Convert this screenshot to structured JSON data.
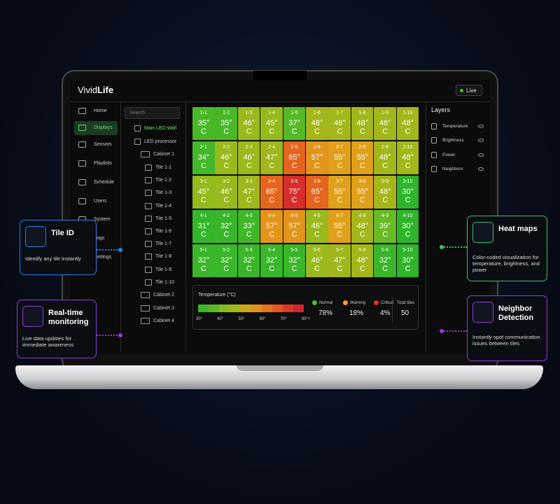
{
  "header": {
    "brand_light": "Vivid",
    "brand_bold": "Life",
    "status": "Live"
  },
  "nav": [
    {
      "label": "Home"
    },
    {
      "label": "Displays",
      "active": true
    },
    {
      "label": "Sensors"
    },
    {
      "label": "Playlists"
    },
    {
      "label": "Schedule"
    },
    {
      "label": "Users"
    },
    {
      "label": "System"
    },
    {
      "label": "Logs"
    },
    {
      "label": "Settings"
    }
  ],
  "search_placeholder": "Search",
  "tree": {
    "wall": "Main LED Wall",
    "processor": "LED processor",
    "cabinets": [
      {
        "label": "Cabinet 1",
        "tiles": [
          "Tile 1-1",
          "Tile 1-2",
          "Tile 1-3",
          "Tile 1-4",
          "Tile 1-5",
          "Tile 1-6",
          "Tile 1-7",
          "Tile 1-8",
          "Tile 1-9",
          "Tile 1-10"
        ]
      },
      {
        "label": "Cabinet 2"
      },
      {
        "label": "Cabinet 3"
      },
      {
        "label": "Cabinet 4"
      }
    ]
  },
  "grid": {
    "rows": [
      [
        {
          "id": "1-1",
          "temp": "35° C"
        },
        {
          "id": "1-2",
          "temp": "35° C"
        },
        {
          "id": "1-3",
          "temp": "46° C"
        },
        {
          "id": "1-4",
          "temp": "45° C"
        },
        {
          "id": "1-5",
          "temp": "37° C"
        },
        {
          "id": "1-6",
          "temp": "48° C"
        },
        {
          "id": "1-7",
          "temp": "48° C"
        },
        {
          "id": "1-8",
          "temp": "48° C"
        },
        {
          "id": "1-9",
          "temp": "48° C"
        },
        {
          "id": "1-10",
          "temp": "48° C"
        }
      ],
      [
        {
          "id": "2-1",
          "temp": "34° C"
        },
        {
          "id": "2-2",
          "temp": "46° C"
        },
        {
          "id": "2-3",
          "temp": "46° C"
        },
        {
          "id": "2-4",
          "temp": "47° C"
        },
        {
          "id": "2-5",
          "temp": "65° C"
        },
        {
          "id": "2-6",
          "temp": "57° C"
        },
        {
          "id": "2-7",
          "temp": "55° C"
        },
        {
          "id": "2-8",
          "temp": "55° C"
        },
        {
          "id": "2-9",
          "temp": "48° C"
        },
        {
          "id": "2-10",
          "temp": "48° C"
        }
      ],
      [
        {
          "id": "3-1",
          "temp": "45° C"
        },
        {
          "id": "3-2",
          "temp": "46° C"
        },
        {
          "id": "3-3",
          "temp": "47° C"
        },
        {
          "id": "3-4",
          "temp": "65° C"
        },
        {
          "id": "3-5",
          "temp": "75° C"
        },
        {
          "id": "3-6",
          "temp": "65° C"
        },
        {
          "id": "3-7",
          "temp": "55° C"
        },
        {
          "id": "3-8",
          "temp": "55° C"
        },
        {
          "id": "3-9",
          "temp": "48° C"
        },
        {
          "id": "3-10",
          "temp": "30° C"
        }
      ],
      [
        {
          "id": "4-1",
          "temp": "31° C"
        },
        {
          "id": "4-2",
          "temp": "32° C"
        },
        {
          "id": "4-3",
          "temp": "33° C"
        },
        {
          "id": "4-4",
          "temp": "57° C"
        },
        {
          "id": "4-5",
          "temp": "57° C"
        },
        {
          "id": "4-6",
          "temp": "46° C"
        },
        {
          "id": "4-7",
          "temp": "55° C"
        },
        {
          "id": "4-8",
          "temp": "48° C"
        },
        {
          "id": "4-9",
          "temp": "39° C"
        },
        {
          "id": "4-10",
          "temp": "30° C"
        }
      ],
      [
        {
          "id": "5-1",
          "temp": "32° C"
        },
        {
          "id": "5-2",
          "temp": "32° C"
        },
        {
          "id": "5-3",
          "temp": "32° C"
        },
        {
          "id": "5-4",
          "temp": "32° C"
        },
        {
          "id": "5-5",
          "temp": "32° C"
        },
        {
          "id": "5-6",
          "temp": "46° C"
        },
        {
          "id": "5-7",
          "temp": "47° C"
        },
        {
          "id": "5-8",
          "temp": "48° C"
        },
        {
          "id": "5-9",
          "temp": "32° C"
        },
        {
          "id": "5-10",
          "temp": "30° C"
        }
      ]
    ]
  },
  "legend": {
    "title": "Temperature (°C)",
    "ticks": [
      "30°",
      "40°",
      "50°",
      "60°",
      "70°",
      "80°+"
    ],
    "scale_colors": [
      "#2fb52a",
      "#4fb928",
      "#88bd1e",
      "#a8b51a",
      "#e0a01a",
      "#e67a1d",
      "#e4551f",
      "#d8322a",
      "#c8202e"
    ]
  },
  "status": [
    {
      "label": "Normal",
      "color": "#3cc13b",
      "value": "78%"
    },
    {
      "label": "Warning",
      "color": "#f0a020",
      "value": "18%"
    },
    {
      "label": "Critical",
      "color": "#e03030",
      "value": "4%"
    }
  ],
  "total": {
    "label": "Total tiles",
    "value": "50"
  },
  "layers": {
    "title": "Layers",
    "items": [
      "Temperature",
      "Brightness",
      "Power",
      "Neighbors"
    ]
  },
  "callouts": [
    {
      "title": "Tile ID",
      "text": "Identify any tile instantly",
      "color": "#2f7fe0"
    },
    {
      "title": "Real-time monitoring",
      "text": "Live data updates for immediate awareness",
      "color": "#8a3fd0"
    },
    {
      "title": "Heat maps",
      "text": "Color-coded visualization for temperature, brightness, and power",
      "color": "#3cc06a"
    },
    {
      "title": "Neighbor Detection",
      "text": "Instantly spot communication issues between tiles",
      "color": "#8a3fd0"
    }
  ]
}
